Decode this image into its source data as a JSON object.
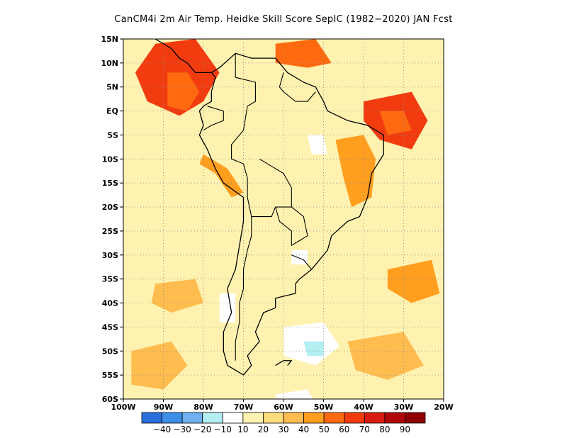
{
  "title": "CanCM4i  2m Air Temp. Heidke Skill Score SepIC (1982−2020) JAN Fcst",
  "map": {
    "lon_range": [
      -100,
      -20
    ],
    "lat_range": [
      -60,
      15
    ],
    "lat_ticks": [
      {
        "value": 15,
        "label": "15N"
      },
      {
        "value": 10,
        "label": "10N"
      },
      {
        "value": 5,
        "label": "5N"
      },
      {
        "value": 0,
        "label": "EQ"
      },
      {
        "value": -5,
        "label": "5S"
      },
      {
        "value": -10,
        "label": "10S"
      },
      {
        "value": -15,
        "label": "15S"
      },
      {
        "value": -20,
        "label": "20S"
      },
      {
        "value": -25,
        "label": "25S"
      },
      {
        "value": -30,
        "label": "30S"
      },
      {
        "value": -35,
        "label": "35S"
      },
      {
        "value": -40,
        "label": "40S"
      },
      {
        "value": -45,
        "label": "45S"
      },
      {
        "value": -50,
        "label": "50S"
      },
      {
        "value": -55,
        "label": "55S"
      },
      {
        "value": -60,
        "label": "60S"
      }
    ],
    "lon_ticks": [
      {
        "value": -100,
        "label": "100W"
      },
      {
        "value": -90,
        "label": "90W"
      },
      {
        "value": -80,
        "label": "80W"
      },
      {
        "value": -70,
        "label": "70W"
      },
      {
        "value": -60,
        "label": "60W"
      },
      {
        "value": -50,
        "label": "50W"
      },
      {
        "value": -40,
        "label": "40W"
      },
      {
        "value": -30,
        "label": "30W"
      },
      {
        "value": -20,
        "label": "20W"
      }
    ],
    "grid": true,
    "regions": [
      {
        "level": 60,
        "pts": [
          [
            -92,
            14
          ],
          [
            -82,
            15
          ],
          [
            -76,
            8
          ],
          [
            -80,
            2
          ],
          [
            -86,
            -1
          ],
          [
            -94,
            2
          ],
          [
            -97,
            8
          ]
        ]
      },
      {
        "level": 50,
        "pts": [
          [
            -89,
            8
          ],
          [
            -84,
            8
          ],
          [
            -81,
            4
          ],
          [
            -84,
            0
          ],
          [
            -89,
            1
          ]
        ]
      },
      {
        "level": 60,
        "pts": [
          [
            -40,
            2
          ],
          [
            -28,
            4
          ],
          [
            -24,
            -2
          ],
          [
            -28,
            -8
          ],
          [
            -36,
            -6
          ],
          [
            -40,
            -2
          ]
        ]
      },
      {
        "level": 50,
        "pts": [
          [
            -36,
            0
          ],
          [
            -30,
            0
          ],
          [
            -28,
            -4
          ],
          [
            -34,
            -5
          ]
        ]
      },
      {
        "level": 50,
        "pts": [
          [
            -62,
            14
          ],
          [
            -52,
            15
          ],
          [
            -48,
            10
          ],
          [
            -54,
            9
          ],
          [
            -62,
            10
          ]
        ]
      },
      {
        "level": 40,
        "pts": [
          [
            -47,
            -6
          ],
          [
            -40,
            -5
          ],
          [
            -37,
            -10
          ],
          [
            -38,
            -18
          ],
          [
            -43,
            -20
          ],
          [
            -45,
            -14
          ]
        ]
      },
      {
        "level": 40,
        "pts": [
          [
            -80,
            -9
          ],
          [
            -74,
            -12
          ],
          [
            -70,
            -17
          ],
          [
            -73,
            -18
          ],
          [
            -77,
            -13
          ],
          [
            -81,
            -11
          ]
        ]
      },
      {
        "level": 40,
        "pts": [
          [
            -34,
            -33
          ],
          [
            -23,
            -31
          ],
          [
            -21,
            -38
          ],
          [
            -28,
            -40
          ],
          [
            -34,
            -37
          ]
        ]
      },
      {
        "level": 30,
        "pts": [
          [
            -44,
            -48
          ],
          [
            -30,
            -46
          ],
          [
            -25,
            -53
          ],
          [
            -34,
            -56
          ],
          [
            -42,
            -54
          ]
        ]
      },
      {
        "level": 30,
        "pts": [
          [
            -98,
            -50
          ],
          [
            -88,
            -48
          ],
          [
            -84,
            -53
          ],
          [
            -90,
            -58
          ],
          [
            -98,
            -57
          ]
        ]
      },
      {
        "level": 30,
        "pts": [
          [
            -92,
            -36
          ],
          [
            -82,
            -35
          ],
          [
            -80,
            -40
          ],
          [
            -88,
            -42
          ],
          [
            -93,
            -40
          ]
        ]
      }
    ],
    "negative_regions": [
      {
        "level": -10,
        "pts": [
          [
            -54,
            -5
          ],
          [
            -50,
            -5
          ],
          [
            -49,
            -9
          ],
          [
            -53,
            -9
          ]
        ]
      },
      {
        "level": -10,
        "pts": [
          [
            -60,
            -45
          ],
          [
            -50,
            -44
          ],
          [
            -46,
            -49
          ],
          [
            -52,
            -53
          ],
          [
            -60,
            -51
          ]
        ]
      },
      {
        "level": -20,
        "pts": [
          [
            -55,
            -48
          ],
          [
            -50,
            -48
          ],
          [
            -50,
            -51
          ],
          [
            -54,
            -51
          ]
        ]
      },
      {
        "level": -10,
        "pts": [
          [
            -76,
            -38
          ],
          [
            -72,
            -38
          ],
          [
            -72,
            -44
          ],
          [
            -76,
            -44
          ]
        ]
      },
      {
        "level": -10,
        "pts": [
          [
            -62,
            -59
          ],
          [
            -54,
            -58
          ],
          [
            -52,
            -61
          ],
          [
            -62,
            -61
          ]
        ]
      },
      {
        "level": -10,
        "pts": [
          [
            -58,
            -29
          ],
          [
            -54,
            -29
          ],
          [
            -54,
            -32
          ],
          [
            -58,
            -32
          ]
        ]
      }
    ],
    "coastlines": [
      [
        [
          -78,
          8
        ],
        [
          -76,
          9
        ],
        [
          -72,
          12
        ],
        [
          -68,
          11
        ],
        [
          -62,
          11
        ],
        [
          -59,
          8
        ],
        [
          -55,
          6
        ],
        [
          -52,
          5
        ],
        [
          -50,
          2
        ],
        [
          -49,
          0
        ],
        [
          -44,
          -2
        ],
        [
          -39,
          -3
        ],
        [
          -35,
          -5
        ],
        [
          -35,
          -9
        ],
        [
          -38,
          -13
        ],
        [
          -39,
          -18
        ],
        [
          -41,
          -22
        ],
        [
          -44,
          -23
        ],
        [
          -48,
          -26
        ],
        [
          -49,
          -29
        ],
        [
          -51,
          -31
        ],
        [
          -53,
          -33
        ],
        [
          -56,
          -35
        ],
        [
          -57,
          -36
        ],
        [
          -57,
          -38
        ],
        [
          -62,
          -39
        ],
        [
          -62,
          -41
        ],
        [
          -65,
          -42
        ],
        [
          -67,
          -46
        ],
        [
          -66,
          -48
        ],
        [
          -69,
          -51
        ],
        [
          -68,
          -53
        ],
        [
          -70,
          -55
        ],
        [
          -74,
          -53
        ],
        [
          -75,
          -50
        ],
        [
          -75,
          -46
        ],
        [
          -73,
          -42
        ],
        [
          -74,
          -37
        ],
        [
          -72,
          -33
        ],
        [
          -71,
          -28
        ],
        [
          -70,
          -23
        ],
        [
          -70,
          -18
        ],
        [
          -75,
          -15
        ],
        [
          -77,
          -12
        ],
        [
          -79,
          -8
        ],
        [
          -81,
          -5
        ],
        [
          -80,
          -3
        ],
        [
          -81,
          0
        ],
        [
          -80,
          1
        ],
        [
          -78,
          2
        ],
        [
          -78,
          4
        ],
        [
          -77,
          7
        ],
        [
          -78,
          8
        ]
      ],
      [
        [
          -92,
          15
        ],
        [
          -88,
          13
        ],
        [
          -86,
          11
        ],
        [
          -84,
          10
        ],
        [
          -82,
          8
        ],
        [
          -80,
          8
        ],
        [
          -78,
          8
        ]
      ],
      [
        [
          -62,
          -53
        ],
        [
          -60,
          -52
        ],
        [
          -58,
          -52
        ],
        [
          -59,
          -53
        ]
      ]
    ],
    "borders": [
      [
        [
          -72,
          12
        ],
        [
          -72,
          7
        ],
        [
          -67,
          6
        ],
        [
          -67,
          2
        ],
        [
          -69,
          1
        ],
        [
          -70,
          -4
        ],
        [
          -73,
          -7
        ],
        [
          -73,
          -10
        ],
        [
          -70,
          -11
        ],
        [
          -69,
          -14
        ],
        [
          -69,
          -18
        ]
      ],
      [
        [
          -79,
          1
        ],
        [
          -75,
          0
        ],
        [
          -75,
          -2
        ],
        [
          -78,
          -3
        ],
        [
          -80,
          -4
        ]
      ],
      [
        [
          -60,
          8
        ],
        [
          -61,
          5
        ],
        [
          -60,
          4
        ],
        [
          -57,
          2
        ],
        [
          -54,
          2
        ],
        [
          -52,
          4
        ]
      ],
      [
        [
          -66,
          -10
        ],
        [
          -60,
          -13
        ],
        [
          -58,
          -16
        ],
        [
          -58,
          -20
        ],
        [
          -62,
          -20
        ],
        [
          -63,
          -22
        ],
        [
          -66,
          -22
        ],
        [
          -68,
          -22
        ],
        [
          -69,
          -18
        ]
      ],
      [
        [
          -58,
          -20
        ],
        [
          -55,
          -22
        ],
        [
          -54,
          -26
        ],
        [
          -56,
          -27
        ],
        [
          -58,
          -28
        ],
        [
          -58,
          -25
        ],
        [
          -61,
          -23
        ],
        [
          -62,
          -20
        ]
      ],
      [
        [
          -58,
          -30
        ],
        [
          -55,
          -31
        ],
        [
          -53,
          -33
        ]
      ],
      [
        [
          -68,
          -22
        ],
        [
          -68,
          -26
        ],
        [
          -69,
          -29
        ],
        [
          -70,
          -33
        ],
        [
          -70,
          -37
        ],
        [
          -71,
          -40
        ],
        [
          -71,
          -44
        ],
        [
          -72,
          -48
        ],
        [
          -72,
          -52
        ]
      ]
    ]
  },
  "colorbar": {
    "levels": [
      -40,
      -30,
      -20,
      -10,
      10,
      20,
      30,
      40,
      50,
      60,
      70,
      80,
      90
    ],
    "labels": [
      "−40",
      "−30",
      "−20",
      "−10",
      "10",
      "20",
      "30",
      "40",
      "50",
      "60",
      "70",
      "80",
      "90"
    ],
    "colors": [
      "#2a6fdc",
      "#3d8ee8",
      "#6fb0f0",
      "#b2eef2",
      "#ffffff",
      "#fff2b0",
      "#ffdc7c",
      "#ffbd50",
      "#ff9e1f",
      "#ff6a10",
      "#f23c10",
      "#d81c10",
      "#b00808",
      "#8e0000"
    ]
  }
}
